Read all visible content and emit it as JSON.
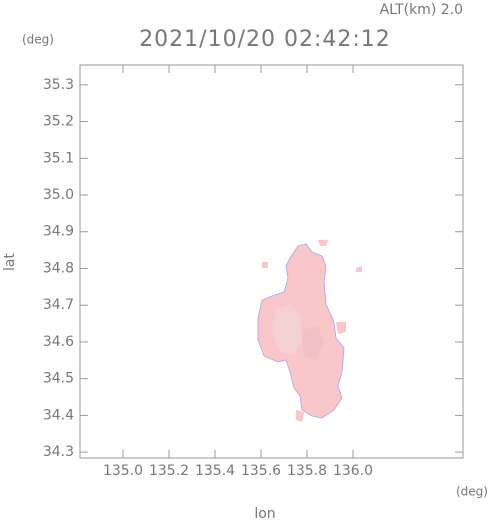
{
  "chart_data": {
    "type": "map",
    "title": "2021/10/20 02:42:12",
    "annotation": "ALT(km) 2.0",
    "xlabel": "lon",
    "ylabel": "lat",
    "xunit": "(deg)",
    "yunit": "(deg)",
    "xlim": [
      134.813,
      136.478
    ],
    "ylim": [
      34.284,
      35.354
    ],
    "xticks": [
      {
        "value": 135.0,
        "label": "135.0"
      },
      135.2,
      135.4,
      135.6,
      135.8,
      {
        "value": 136.0,
        "label": "136.0"
      }
    ],
    "yticks": [
      34.3,
      34.4,
      34.5,
      34.6,
      34.7,
      34.8,
      34.9,
      {
        "value": 35.0,
        "label": "35.0"
      },
      35.1,
      35.2,
      35.3
    ]
  }
}
